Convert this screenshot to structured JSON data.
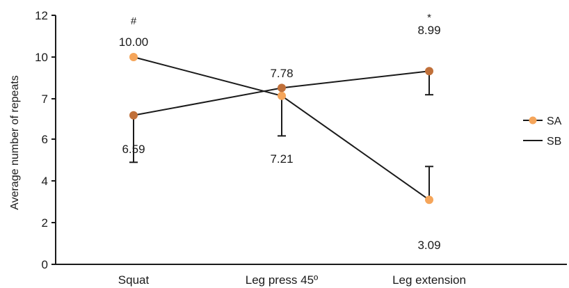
{
  "chart_data": {
    "type": "line",
    "ylabel": "Average number of repeats",
    "ylim": [
      0,
      12
    ],
    "yticks": [
      "0",
      "2",
      "4",
      "6",
      "7",
      "10",
      "12"
    ],
    "categories": [
      "Squat",
      "Leg press 45º",
      "Leg extension"
    ],
    "series": [
      {
        "name": "SA",
        "color": "#f5a55a",
        "values": [
          10.0,
          7.21,
          3.09
        ],
        "error": [
          null,
          null,
          1.6
        ],
        "labels": [
          "10.00",
          "7.21",
          "3.09"
        ]
      },
      {
        "name": "SB",
        "color": "#c0703a",
        "values": [
          6.59,
          7.78,
          8.99
        ],
        "error": [
          1.7,
          1.7,
          1.7
        ],
        "labels": [
          "6.59",
          "7.78",
          "8.99"
        ]
      }
    ],
    "annotations": [
      "#",
      "*"
    ],
    "legend": {
      "position": "right",
      "items": [
        "SA",
        "SB"
      ]
    },
    "line_color": "#1a1a1a",
    "grid": false
  }
}
